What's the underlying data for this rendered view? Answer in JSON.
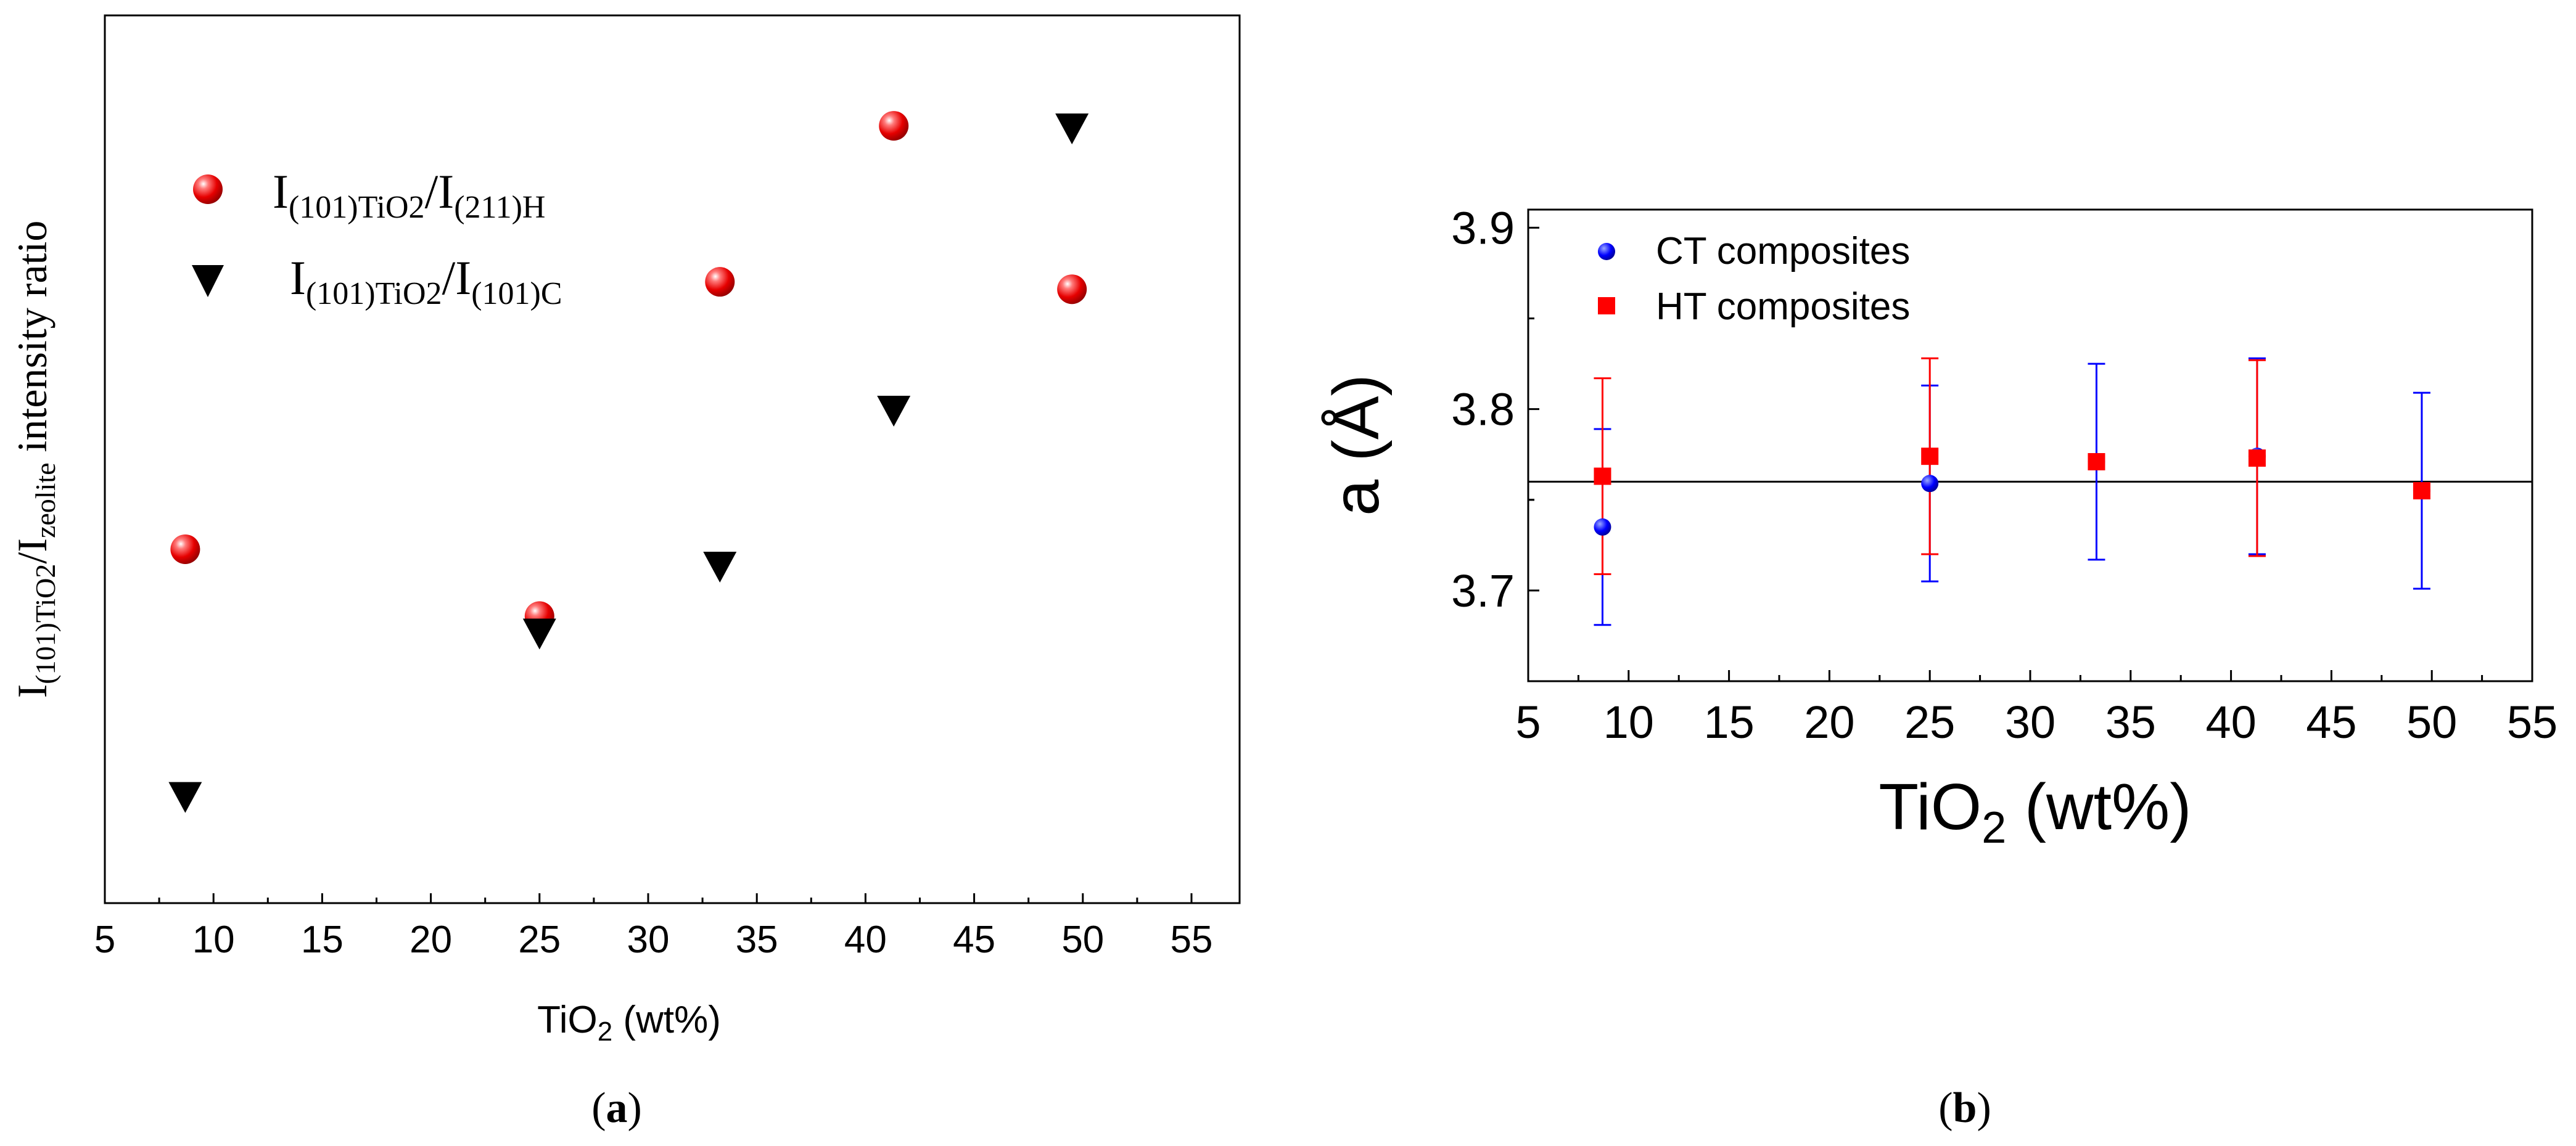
{
  "chart_data": [
    {
      "panel": "a",
      "type": "scatter",
      "caption": "a",
      "xlabel": {
        "main": "TiO",
        "sub": "2",
        "rest": " (wt%)"
      },
      "ylabel": {
        "p1": "I",
        "s1": "(101)TiO2",
        "p2": "/I",
        "s2": "zeolite",
        "rest": " intensity ratio"
      },
      "xlim": [
        5,
        55
      ],
      "ylim": [
        0,
        1
      ],
      "x_ticks": [
        "5",
        "10",
        "15",
        "20",
        "25",
        "30",
        "35",
        "40",
        "45",
        "50",
        "55"
      ],
      "y_ticks_shown": false,
      "series": [
        {
          "name": "I(101)TiO2/I(211)H",
          "legend": {
            "p1": "I",
            "s1": "(101)TiO2",
            "p2": "/I",
            "s2": "(211)H"
          },
          "marker": "sphere",
          "color": "#e60000",
          "x": [
            8.7,
            25,
            33.3,
            41.3,
            49.5
          ],
          "y": [
            0.41,
            0.32,
            0.77,
            0.98,
            0.76
          ]
        },
        {
          "name": "I(101)TiO2/I(101)C",
          "legend": {
            "p1": "I",
            "s1": "(101)TiO2",
            "p2": "/I",
            "s2": "(101)C"
          },
          "marker": "triangle-down",
          "color": "#000000",
          "x": [
            8.7,
            25,
            33.3,
            41.3,
            49.5
          ],
          "y": [
            0.08,
            0.3,
            0.39,
            0.6,
            0.98
          ]
        }
      ]
    },
    {
      "panel": "b",
      "type": "scatter",
      "caption": "b",
      "xlabel": {
        "main": "TiO",
        "sub": "2",
        "rest": " (wt%)"
      },
      "ylabel": "a (Å)",
      "xlim": [
        5,
        55
      ],
      "ylim": [
        3.65,
        3.91
      ],
      "x_ticks": [
        "5",
        "10",
        "15",
        "20",
        "25",
        "30",
        "35",
        "40",
        "45",
        "50",
        "55"
      ],
      "y_ticks": [
        "3.7",
        "3.8",
        "3.9"
      ],
      "reference_line_y": 3.76,
      "series": [
        {
          "name": "CT composites",
          "marker": "circle",
          "color": "#0000ff",
          "x": [
            8.7,
            25,
            33.3,
            41.3,
            49.5
          ],
          "y": [
            3.735,
            3.759,
            3.771,
            3.774,
            3.755
          ],
          "yerr": [
            0.054,
            0.054,
            0.054,
            0.054,
            0.054
          ]
        },
        {
          "name": "HT composites",
          "marker": "square",
          "color": "#ff0000",
          "x": [
            8.7,
            25,
            33.3,
            41.3,
            49.5
          ],
          "y": [
            3.763,
            3.774,
            3.771,
            3.773,
            3.755
          ],
          "yerr": [
            0.054,
            0.054,
            0,
            0.054,
            0
          ]
        }
      ]
    }
  ]
}
